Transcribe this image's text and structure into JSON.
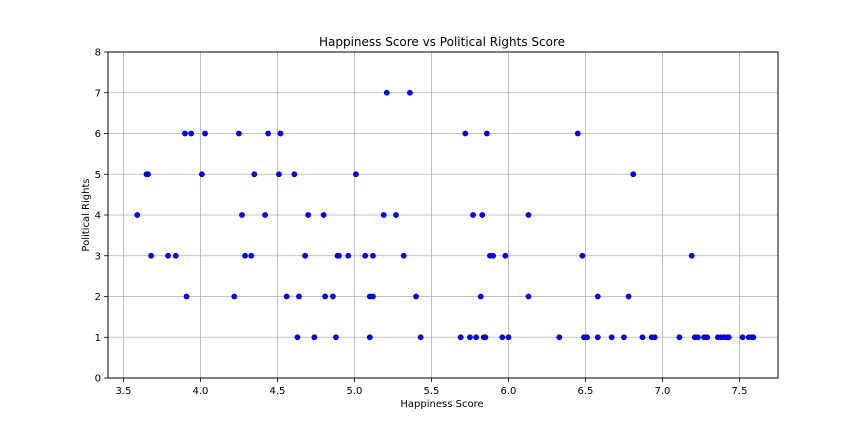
{
  "chart_data": {
    "type": "scatter",
    "title": "Happiness Score vs Political Rights Score",
    "xlabel": "Happiness Score",
    "ylabel": "Political Rights",
    "xlim": [
      3.4,
      7.75
    ],
    "ylim": [
      0,
      8
    ],
    "xticks": [
      3.5,
      4.0,
      4.5,
      5.0,
      5.5,
      6.0,
      6.5,
      7.0,
      7.5
    ],
    "xtick_labels": [
      "3.5",
      "4.0",
      "4.5",
      "5.0",
      "5.5",
      "6.0",
      "6.5",
      "7.0",
      "7.5"
    ],
    "yticks": [
      0,
      1,
      2,
      3,
      4,
      5,
      6,
      7,
      8
    ],
    "ytick_labels": [
      "0",
      "1",
      "2",
      "3",
      "4",
      "5",
      "6",
      "7",
      "8"
    ],
    "grid": true,
    "marker_color": "#0000ff",
    "marker_edge_color": "#000080",
    "series": [
      {
        "points": [
          [
            3.59,
            4
          ],
          [
            3.65,
            5
          ],
          [
            3.66,
            5
          ],
          [
            3.68,
            3
          ],
          [
            3.79,
            3
          ],
          [
            3.84,
            3
          ],
          [
            3.9,
            6
          ],
          [
            3.91,
            2
          ],
          [
            3.94,
            6
          ],
          [
            4.01,
            5
          ],
          [
            4.03,
            6
          ],
          [
            4.22,
            2
          ],
          [
            4.25,
            6
          ],
          [
            4.27,
            4
          ],
          [
            4.29,
            3
          ],
          [
            4.33,
            3
          ],
          [
            4.35,
            5
          ],
          [
            4.42,
            4
          ],
          [
            4.44,
            6
          ],
          [
            4.51,
            5
          ],
          [
            4.52,
            6
          ],
          [
            4.56,
            2
          ],
          [
            4.61,
            5
          ],
          [
            4.63,
            1
          ],
          [
            4.64,
            2
          ],
          [
            4.68,
            3
          ],
          [
            4.7,
            4
          ],
          [
            4.74,
            1
          ],
          [
            4.8,
            4
          ],
          [
            4.81,
            2
          ],
          [
            4.86,
            2
          ],
          [
            4.88,
            1
          ],
          [
            4.89,
            3
          ],
          [
            4.9,
            3
          ],
          [
            4.96,
            3
          ],
          [
            5.01,
            5
          ],
          [
            5.07,
            3
          ],
          [
            5.1,
            1
          ],
          [
            5.1,
            2
          ],
          [
            5.12,
            2
          ],
          [
            5.12,
            3
          ],
          [
            5.19,
            4
          ],
          [
            5.21,
            7
          ],
          [
            5.27,
            4
          ],
          [
            5.32,
            3
          ],
          [
            5.36,
            7
          ],
          [
            5.4,
            2
          ],
          [
            5.43,
            1
          ],
          [
            5.69,
            1
          ],
          [
            5.72,
            6
          ],
          [
            5.75,
            1
          ],
          [
            5.77,
            4
          ],
          [
            5.79,
            1
          ],
          [
            5.82,
            2
          ],
          [
            5.83,
            4
          ],
          [
            5.84,
            1
          ],
          [
            5.85,
            1
          ],
          [
            5.86,
            6
          ],
          [
            5.88,
            3
          ],
          [
            5.9,
            3
          ],
          [
            5.96,
            1
          ],
          [
            5.98,
            3
          ],
          [
            6.0,
            1
          ],
          [
            6.13,
            4
          ],
          [
            6.13,
            2
          ],
          [
            6.33,
            1
          ],
          [
            6.45,
            6
          ],
          [
            6.48,
            3
          ],
          [
            6.49,
            1
          ],
          [
            6.51,
            1
          ],
          [
            6.58,
            2
          ],
          [
            6.58,
            1
          ],
          [
            6.67,
            1
          ],
          [
            6.75,
            1
          ],
          [
            6.78,
            2
          ],
          [
            6.81,
            5
          ],
          [
            6.87,
            1
          ],
          [
            6.93,
            1
          ],
          [
            6.95,
            1
          ],
          [
            7.11,
            1
          ],
          [
            7.19,
            3
          ],
          [
            7.21,
            1
          ],
          [
            7.23,
            1
          ],
          [
            7.27,
            1
          ],
          [
            7.29,
            1
          ],
          [
            7.36,
            1
          ],
          [
            7.38,
            1
          ],
          [
            7.4,
            1
          ],
          [
            7.42,
            1
          ],
          [
            7.43,
            1
          ],
          [
            7.52,
            1
          ],
          [
            7.56,
            1
          ],
          [
            7.58,
            1
          ],
          [
            7.59,
            1
          ]
        ]
      }
    ]
  }
}
